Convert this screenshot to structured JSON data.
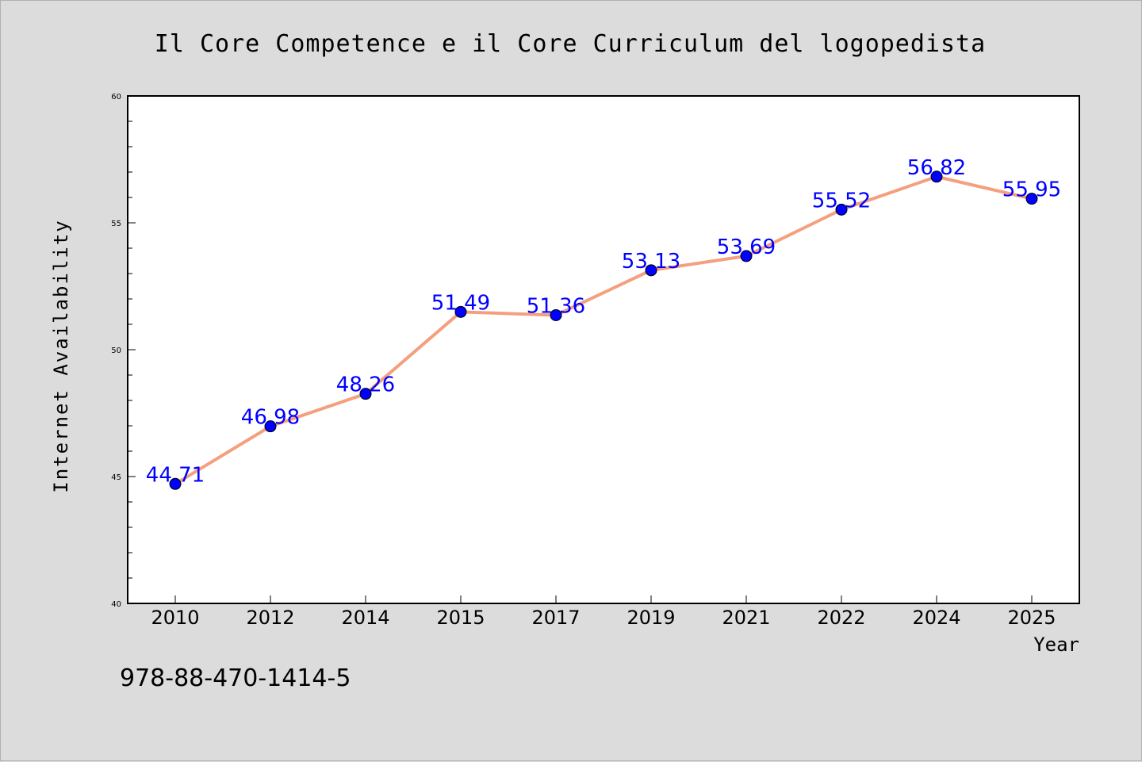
{
  "chart_data": {
    "type": "line",
    "title": "Il Core Competence e il Core Curriculum del logopedista",
    "xlabel": "Year",
    "ylabel": "Internet Availability",
    "categories": [
      "2010",
      "2012",
      "2014",
      "2015",
      "2017",
      "2019",
      "2021",
      "2022",
      "2024",
      "2025"
    ],
    "series": [
      {
        "values": [
          44.71,
          46.98,
          48.26,
          51.49,
          51.36,
          53.13,
          53.69,
          55.52,
          56.82,
          55.95
        ],
        "labels": [
          "44.71",
          "46.98",
          "48.26",
          "51.49",
          "51.36",
          "53.13",
          "53.69",
          "55.52",
          "56.82",
          "55.95"
        ],
        "line_color": "#f4a07e",
        "marker_color": "#0000ff"
      }
    ],
    "ylim": [
      40,
      60
    ],
    "yticks": [
      "40",
      "45",
      "50",
      "55",
      "60"
    ],
    "grid": false,
    "legend": "none"
  },
  "footer": {
    "isbn": "978-88-470-1414-5"
  }
}
